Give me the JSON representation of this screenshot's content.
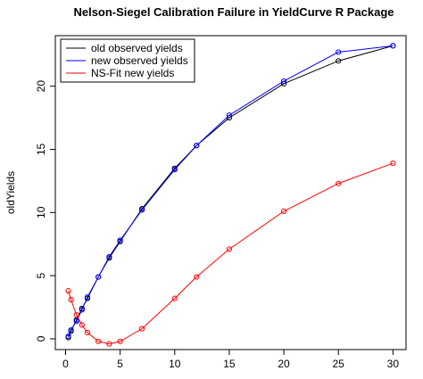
{
  "chart_data": {
    "type": "line",
    "title": "Nelson-Siegel Calibration Failure in YieldCurve R Package",
    "y_label": "oldYields",
    "x": [
      0.25,
      0.5,
      1,
      1.5,
      2,
      3,
      4,
      5,
      7,
      10,
      12,
      15,
      20,
      25,
      30
    ],
    "series": [
      {
        "name": "old observed yields",
        "color": "#000000",
        "values": [
          0.1,
          0.6,
          1.5,
          2.4,
          3.2,
          4.9,
          6.4,
          7.7,
          10.3,
          13.5,
          15.3,
          17.5,
          20.2,
          22.0,
          23.2
        ]
      },
      {
        "name": "new observed yields",
        "color": "#0000ff",
        "values": [
          0.2,
          0.7,
          1.4,
          2.3,
          3.3,
          4.9,
          6.5,
          7.8,
          10.2,
          13.4,
          15.3,
          17.7,
          20.4,
          22.7,
          23.2
        ]
      },
      {
        "name": "NS-Fit new yields",
        "color": "#ff0000",
        "values": [
          3.8,
          3.1,
          1.9,
          1.1,
          0.5,
          -0.2,
          -0.4,
          -0.2,
          0.8,
          3.2,
          4.9,
          7.1,
          10.1,
          12.3,
          13.9
        ]
      }
    ],
    "xlim": [
      -0.94,
      31.2
    ],
    "xticks": [
      0,
      5,
      10,
      15,
      20,
      25,
      30
    ],
    "ylim": [
      -0.85,
      24.0
    ],
    "yticks": [
      0,
      5,
      10,
      15,
      20
    ],
    "legend": "top-left",
    "markers": "open-circle"
  }
}
